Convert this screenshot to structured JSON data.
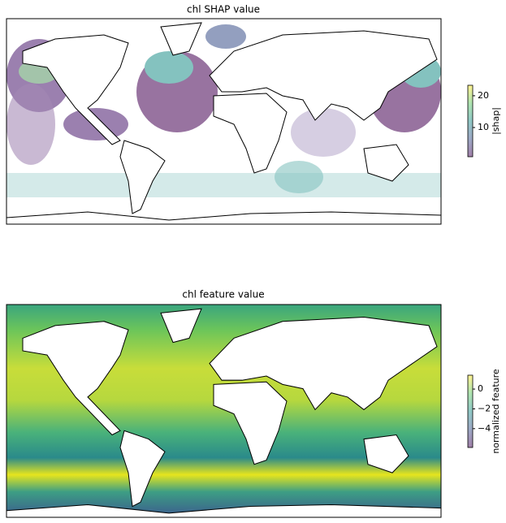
{
  "panels": [
    {
      "title": "chl SHAP value",
      "colorbar": {
        "label": "|shap|",
        "lim": [
          0.8,
          23.3
        ],
        "ticks": [
          10,
          20
        ]
      }
    },
    {
      "title": "chl feature value",
      "colorbar": {
        "label": "normalized feature",
        "lim": [
          -5.9,
          1.4
        ],
        "ticks": [
          {
            "value": -4,
            "label": "−4"
          },
          {
            "value": -2,
            "label": "−2"
          },
          0
        ]
      }
    }
  ]
}
